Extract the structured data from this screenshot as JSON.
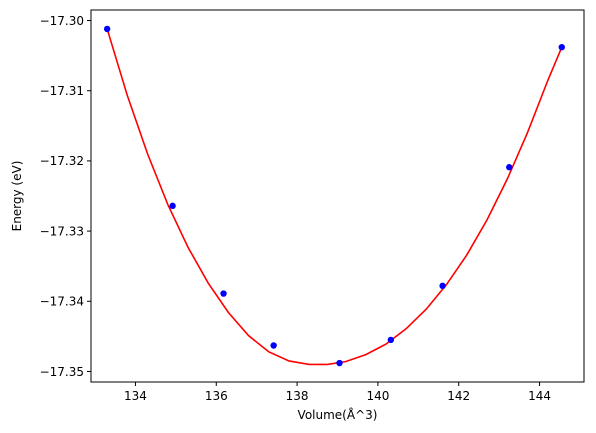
{
  "chart_data": {
    "type": "scatter",
    "xlabel": "Volume(Å^3)",
    "ylabel": "Energy (eV)",
    "xlim": [
      132.9,
      145.1
    ],
    "ylim": [
      -17.3515,
      -17.2985
    ],
    "xticks": [
      134,
      136,
      138,
      140,
      142,
      144
    ],
    "xtick_labels": [
      "134",
      "136",
      "138",
      "140",
      "142",
      "144"
    ],
    "yticks": [
      -17.35,
      -17.34,
      -17.33,
      -17.32,
      -17.31,
      -17.3
    ],
    "ytick_labels": [
      "−17.35",
      "−17.34",
      "−17.33",
      "−17.32",
      "−17.31",
      "−17.30"
    ],
    "grid": false,
    "series": [
      {
        "kind": "points",
        "color": "#0000ff",
        "x": [
          133.3,
          134.92,
          136.18,
          137.42,
          139.05,
          140.32,
          141.6,
          143.25,
          144.55
        ],
        "y": [
          -17.3012,
          -17.3264,
          -17.3389,
          -17.3463,
          -17.3488,
          -17.3455,
          -17.3378,
          -17.3209,
          -17.3038
        ]
      },
      {
        "kind": "fit-curve",
        "color": "#ff0000",
        "x": [
          133.3,
          133.8,
          134.3,
          134.8,
          135.3,
          135.8,
          136.3,
          136.8,
          137.3,
          137.8,
          138.3,
          138.75,
          139.2,
          139.7,
          140.2,
          140.7,
          141.2,
          141.7,
          142.2,
          142.7,
          143.2,
          143.7,
          144.2,
          144.55
        ],
        "y": [
          -17.3012,
          -17.3107,
          -17.319,
          -17.3262,
          -17.3323,
          -17.3374,
          -17.3416,
          -17.3449,
          -17.3472,
          -17.3485,
          -17.349,
          -17.349,
          -17.3486,
          -17.3476,
          -17.3461,
          -17.3439,
          -17.3411,
          -17.3376,
          -17.3334,
          -17.3284,
          -17.3226,
          -17.316,
          -17.3086,
          -17.3038
        ]
      }
    ]
  }
}
